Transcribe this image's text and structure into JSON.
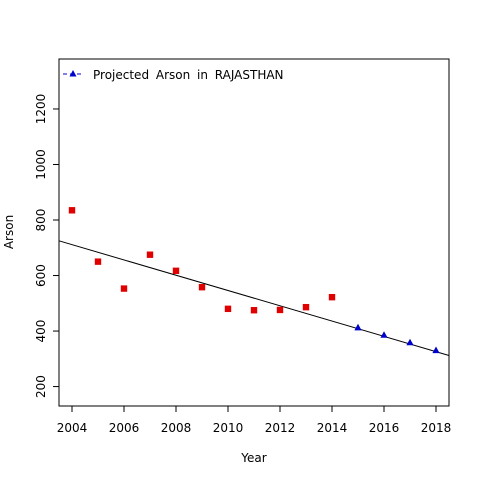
{
  "chart_data": {
    "type": "scatter",
    "xlabel": "Year",
    "ylabel": "Arson",
    "xlim": [
      2003.5,
      2018.5
    ],
    "ylim": [
      130,
      1380
    ],
    "x_ticks": [
      2004,
      2006,
      2008,
      2010,
      2012,
      2014,
      2016,
      2018
    ],
    "y_ticks": [
      200,
      400,
      600,
      800,
      1000,
      1200
    ],
    "grid": false,
    "legend": {
      "position": "top-left",
      "entries": [
        "Projected Arson in RAJASTHAN"
      ]
    },
    "observed": {
      "color": "#e00000",
      "marker": "square",
      "x": [
        2004,
        2005,
        2006,
        2007,
        2008,
        2009,
        2010,
        2011,
        2012,
        2013,
        2014
      ],
      "y": [
        835,
        650,
        553,
        675,
        617,
        558,
        480,
        475,
        476,
        486,
        522
      ]
    },
    "projected": {
      "name": "Projected Arson in RAJASTHAN",
      "color": "#0000cc",
      "marker": "triangle",
      "x": [
        2015,
        2016,
        2017,
        2018
      ],
      "y": [
        412,
        385,
        358,
        330
      ]
    },
    "trend_line": {
      "color": "#000000",
      "x": [
        2003.5,
        2018.5
      ],
      "y": [
        725,
        312
      ]
    }
  }
}
